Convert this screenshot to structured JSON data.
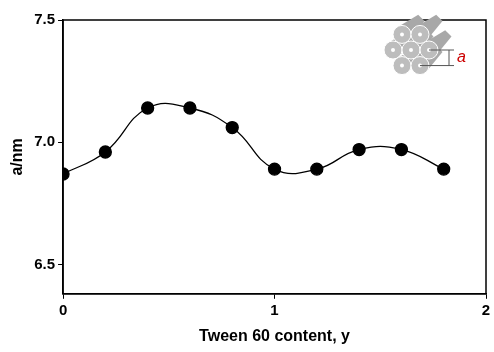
{
  "chart_data": {
    "type": "line",
    "x_label": "Tween 60 content, y",
    "y_label": "a/nm",
    "x": [
      0,
      0.2,
      0.4,
      0.6,
      0.8,
      1.0,
      1.2,
      1.4,
      1.6,
      1.8
    ],
    "values": [
      6.87,
      6.96,
      7.14,
      7.14,
      7.06,
      6.89,
      6.89,
      6.97,
      6.97,
      6.89
    ],
    "color": "#000000",
    "marker": "circle",
    "line_style": "smooth",
    "xlim": [
      0,
      2
    ],
    "xticks": [
      0,
      1,
      2
    ],
    "ylim": [
      6.38,
      7.5
    ],
    "yticks": [
      6.5,
      {
        "value": 7,
        "label": "7.0"
      },
      7.5
    ],
    "grid": false,
    "annotations": [
      {
        "text": "a",
        "color": "#cc0000"
      }
    ]
  }
}
